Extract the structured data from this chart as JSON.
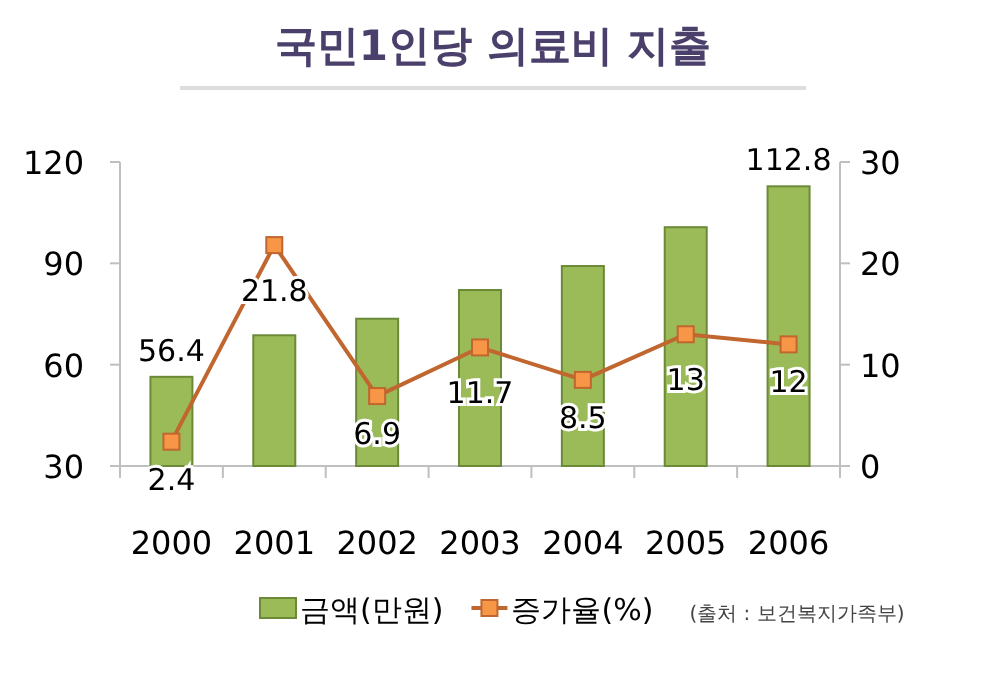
{
  "chart_data": {
    "type": "bar",
    "title": "국민1인당 의료비 지출",
    "categories": [
      "2000",
      "2001",
      "2002",
      "2003",
      "2004",
      "2005",
      "2006"
    ],
    "series": [
      {
        "name": "금액(만원)",
        "color": "#9bbb59",
        "values": [
          56.4,
          68.7,
          73.6,
          82.1,
          89.2,
          100.7,
          112.8
        ],
        "value_labels": [
          "56.4",
          null,
          null,
          null,
          null,
          null,
          "112.8"
        ]
      },
      {
        "name": "증가율(%)",
        "type": "line",
        "axis": "y2",
        "color": "#c0662e",
        "values": [
          2.4,
          21.8,
          6.9,
          11.7,
          8.5,
          13,
          12
        ],
        "value_labels": [
          "2.4",
          "21.8",
          "6.9",
          "11.7",
          "8.5",
          "13",
          "12"
        ]
      }
    ],
    "ylim": [
      30,
      120
    ],
    "yticks": [
      30,
      60,
      90,
      120
    ],
    "y2lim": [
      0,
      30
    ],
    "y2ticks": [
      0,
      10,
      20,
      30
    ],
    "marker": "square",
    "legend": "bottom",
    "grid": false,
    "annotations": [
      "(출처 : 보건복지가족부)"
    ]
  }
}
